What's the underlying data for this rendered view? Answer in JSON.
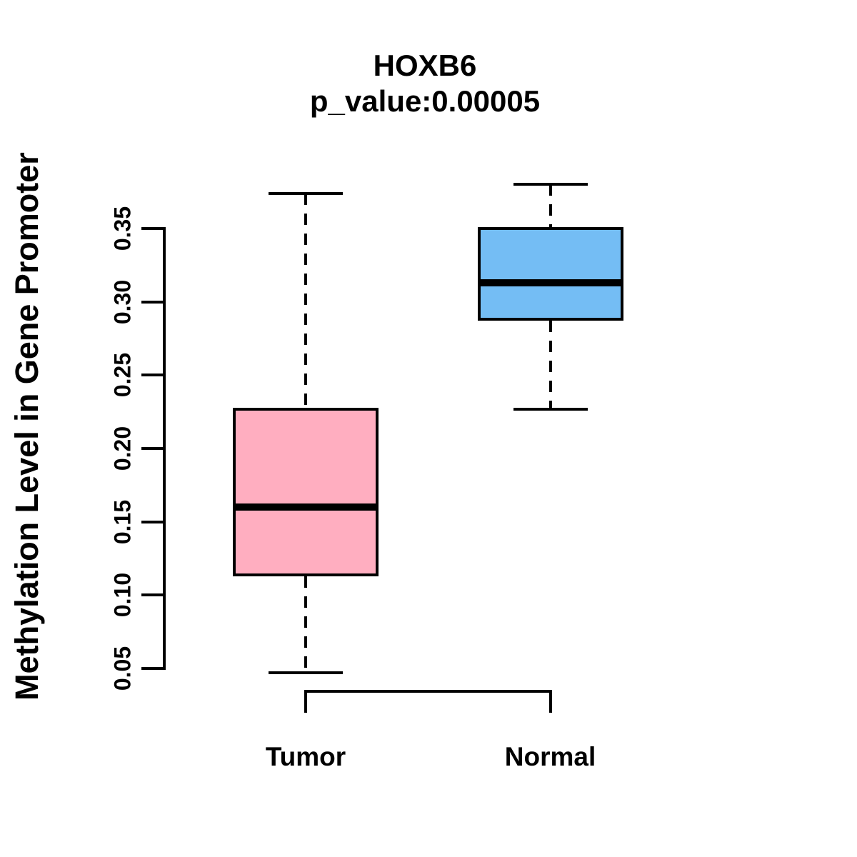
{
  "title": "HOXB6",
  "subtitle": "p_value:0.00005",
  "y_axis": {
    "label": "Methylation Level in Gene Promoter",
    "tick_labels": [
      "0.05",
      "0.10",
      "0.15",
      "0.20",
      "0.25",
      "0.30",
      "0.35"
    ],
    "tick_values": [
      0.05,
      0.1,
      0.15,
      0.2,
      0.25,
      0.3,
      0.35
    ]
  },
  "x_axis": {
    "categories": [
      "Tumor",
      "Normal"
    ]
  },
  "chart_data": {
    "type": "boxplot",
    "title": "HOXB6",
    "subtitle": "p_value:0.00005",
    "xlabel": "",
    "ylabel": "Methylation Level in Gene Promoter",
    "ylim": [
      0.05,
      0.35
    ],
    "grid": false,
    "legend": false,
    "categories": [
      "Tumor",
      "Normal"
    ],
    "series": [
      {
        "name": "Tumor",
        "fill_color": "#FFAEC0",
        "whisker_low": 0.047,
        "q1": 0.113,
        "median": 0.16,
        "q3": 0.228,
        "whisker_high": 0.374
      },
      {
        "name": "Normal",
        "fill_color": "#74BDF4",
        "whisker_low": 0.227,
        "q1": 0.287,
        "median": 0.313,
        "q3": 0.351,
        "whisker_high": 0.38
      }
    ]
  },
  "colors": {
    "tumor_fill": "#FFAEC0",
    "normal_fill": "#74BDF4",
    "line": "#000000",
    "background": "#FFFFFF"
  }
}
